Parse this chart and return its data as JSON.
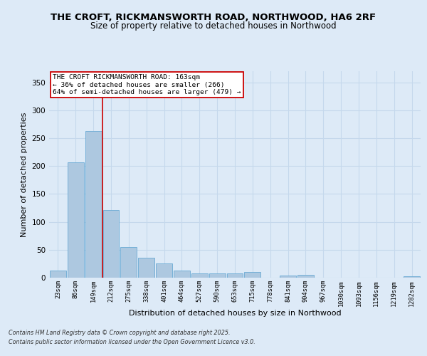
{
  "title_line1": "THE CROFT, RICKMANSWORTH ROAD, NORTHWOOD, HA6 2RF",
  "title_line2": "Size of property relative to detached houses in Northwood",
  "xlabel": "Distribution of detached houses by size in Northwood",
  "ylabel": "Number of detached properties",
  "bar_labels": [
    "23sqm",
    "86sqm",
    "149sqm",
    "212sqm",
    "275sqm",
    "338sqm",
    "401sqm",
    "464sqm",
    "527sqm",
    "590sqm",
    "653sqm",
    "715sqm",
    "778sqm",
    "841sqm",
    "904sqm",
    "967sqm",
    "1030sqm",
    "1093sqm",
    "1156sqm",
    "1219sqm",
    "1282sqm"
  ],
  "bar_values": [
    13,
    207,
    263,
    121,
    55,
    36,
    25,
    13,
    8,
    8,
    8,
    10,
    0,
    4,
    5,
    0,
    0,
    0,
    0,
    0,
    2
  ],
  "bar_color": "#adc8e0",
  "bar_edge_color": "#6aaad4",
  "grid_color": "#c5d8ec",
  "background_color": "#ddeaf7",
  "vline_color": "#cc0000",
  "annotation_text": "THE CROFT RICKMANSWORTH ROAD: 163sqm\n← 36% of detached houses are smaller (266)\n64% of semi-detached houses are larger (479) →",
  "annotation_box_color": "#ffffff",
  "annotation_box_edge": "#cc0000",
  "ylim": [
    0,
    370
  ],
  "yticks": [
    0,
    50,
    100,
    150,
    200,
    250,
    300,
    350
  ],
  "footer_line1": "Contains HM Land Registry data © Crown copyright and database right 2025.",
  "footer_line2": "Contains public sector information licensed under the Open Government Licence v3.0."
}
